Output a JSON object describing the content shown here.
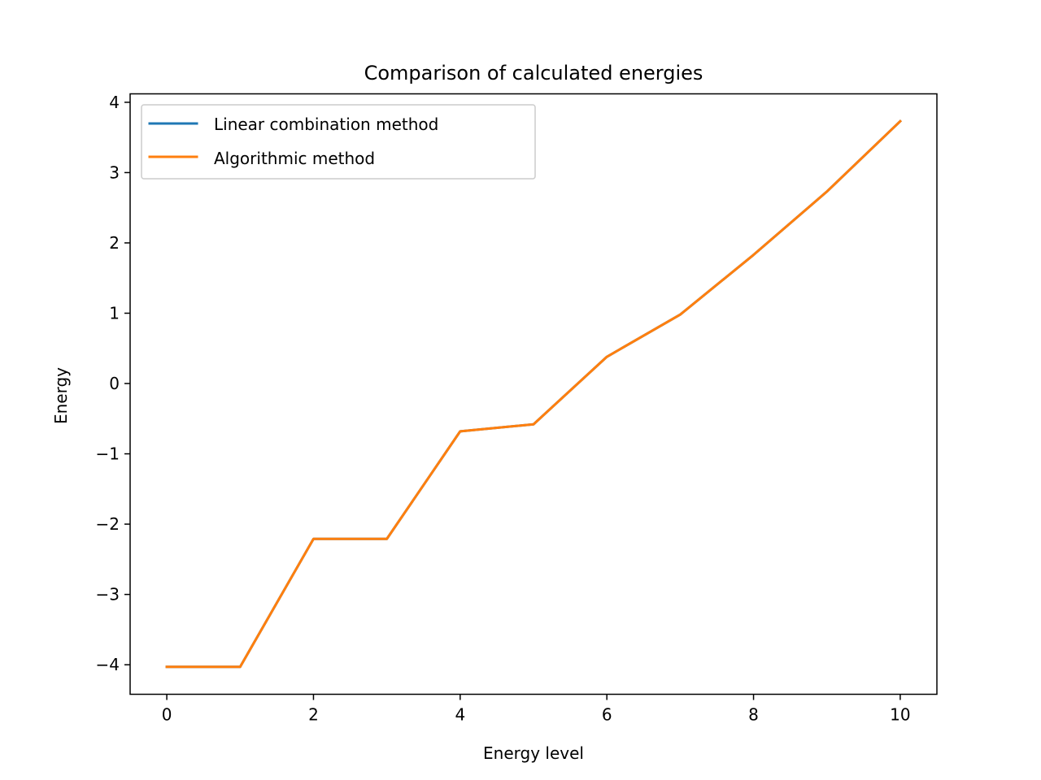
{
  "chart_data": {
    "type": "line",
    "title": "Comparison of calculated energies",
    "xlabel": "Energy level",
    "ylabel": "Energy",
    "xlim": [
      -0.5,
      10.5
    ],
    "ylim": [
      -4.42,
      4.12
    ],
    "grid": false,
    "legend_position": "top-left",
    "xticks": [
      0,
      2,
      4,
      6,
      8,
      10
    ],
    "xtick_labels": [
      "0",
      "2",
      "4",
      "6",
      "8",
      "10"
    ],
    "yticks": [
      -4,
      -3,
      -2,
      -1,
      0,
      1,
      2,
      3,
      4
    ],
    "ytick_labels": [
      "−4",
      "−3",
      "−2",
      "−1",
      "0",
      "1",
      "2",
      "3",
      "4"
    ],
    "x": [
      0,
      1,
      2,
      3,
      4,
      5,
      6,
      7,
      8,
      9,
      10
    ],
    "series": [
      {
        "name": "Linear combination method",
        "color": "#1f77b4",
        "values": [
          -4.03,
          -4.03,
          -2.21,
          -2.21,
          -0.68,
          -0.58,
          0.38,
          0.98,
          1.83,
          2.73,
          3.73
        ]
      },
      {
        "name": "Algorithmic method",
        "color": "#ff7f0e",
        "values": [
          -4.03,
          -4.03,
          -2.21,
          -2.21,
          -0.68,
          -0.58,
          0.38,
          0.98,
          1.83,
          2.73,
          3.73
        ]
      }
    ]
  }
}
